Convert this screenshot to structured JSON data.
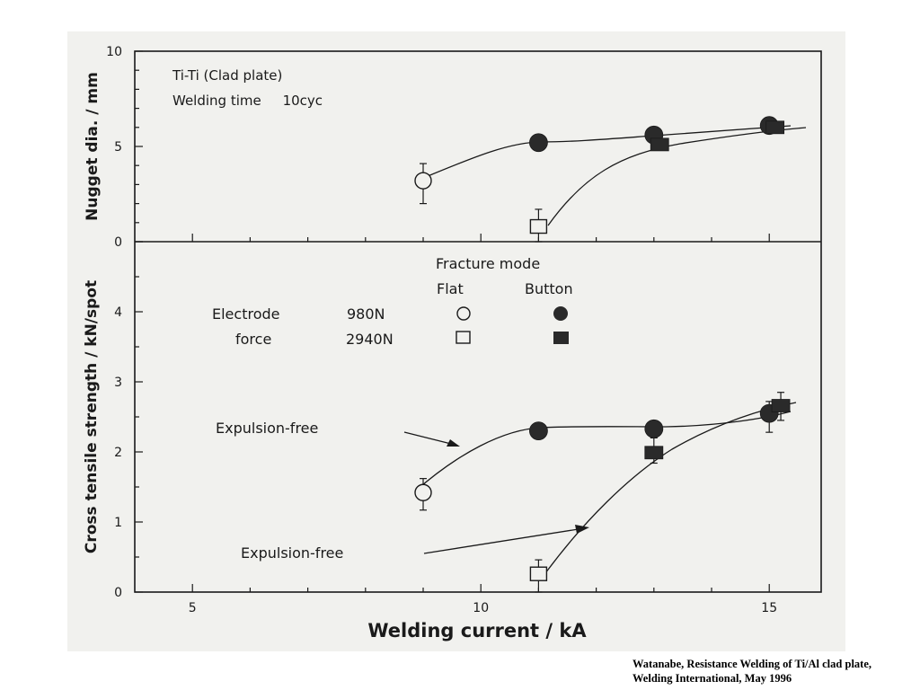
{
  "chart_data": [
    {
      "type": "line",
      "panel": "top",
      "title": "",
      "ylabel": "Nugget dia. / mm",
      "xlabel": "",
      "xlim": [
        4,
        15.9
      ],
      "ylim": [
        0,
        10
      ],
      "yticks": [
        0,
        5,
        10
      ],
      "tick_labels": [
        "0",
        "5",
        "10"
      ],
      "annotations": [
        "Ti-Ti (Clad plate)",
        "Welding time     10cyc"
      ],
      "series": [
        {
          "name": "980N",
          "marker_style": "circle",
          "points": [
            {
              "x": 9.0,
              "y": 3.2,
              "fill": "open",
              "err": [
                2.0,
                4.1
              ]
            },
            {
              "x": 11.0,
              "y": 5.2,
              "fill": "filled"
            },
            {
              "x": 13.0,
              "y": 5.6,
              "fill": "filled"
            },
            {
              "x": 15.0,
              "y": 6.1,
              "fill": "filled"
            }
          ]
        },
        {
          "name": "2940N",
          "marker_style": "square",
          "points": [
            {
              "x": 11.0,
              "y": 0.8,
              "fill": "open",
              "err": [
                0.0,
                1.7
              ]
            },
            {
              "x": 13.1,
              "y": 5.1,
              "fill": "filled"
            },
            {
              "x": 15.1,
              "y": 6.0,
              "fill": "filled"
            }
          ]
        }
      ]
    },
    {
      "type": "line",
      "panel": "bottom",
      "title": "",
      "ylabel": "Cross tensile strength / kN/spot",
      "xlabel": "Welding current / kA",
      "xlim": [
        4,
        15.9
      ],
      "ylim": [
        0,
        5
      ],
      "yticks": [
        0,
        1,
        2,
        3,
        4
      ],
      "tick_labels": [
        "0",
        "1",
        "2",
        "3",
        "4"
      ],
      "xticks": [
        5,
        10,
        15
      ],
      "xtick_labels": [
        "5",
        "10",
        "15"
      ],
      "annotations": [
        "Expulsion-free",
        "Expulsion-free"
      ],
      "series": [
        {
          "name": "980N",
          "marker_style": "circle",
          "points": [
            {
              "x": 9.0,
              "y": 1.42,
              "fill": "open",
              "err": [
                1.17,
                1.62
              ]
            },
            {
              "x": 11.0,
              "y": 2.3,
              "fill": "filled"
            },
            {
              "x": 13.0,
              "y": 2.33,
              "fill": "filled"
            },
            {
              "x": 15.0,
              "y": 2.55,
              "fill": "filled",
              "err": [
                2.28,
                2.72
              ]
            }
          ]
        },
        {
          "name": "2940N",
          "marker_style": "square",
          "points": [
            {
              "x": 11.0,
              "y": 0.26,
              "fill": "open",
              "err": [
                0.0,
                0.46
              ]
            },
            {
              "x": 13.0,
              "y": 1.99,
              "fill": "filled",
              "err": [
                1.84,
                2.2
              ]
            },
            {
              "x": 15.2,
              "y": 2.66,
              "fill": "filled",
              "err": [
                2.45,
                2.85
              ]
            }
          ]
        }
      ]
    }
  ],
  "legend": {
    "title": "Fracture mode",
    "col_flat": "Flat",
    "col_button": "Button",
    "row1_label": "Electrode",
    "row1_value": "980N",
    "row2_label": "force",
    "row2_value": "2940N"
  },
  "caption": {
    "line1": "Watanabe, Resistance Welding of Ti/Al clad plate,",
    "line2": "Welding International, May 1996"
  },
  "colors": {
    "ink": "#1a1a1a",
    "panel_bg": "#f1f1ee",
    "marker_fill": "#2a2a2a"
  }
}
